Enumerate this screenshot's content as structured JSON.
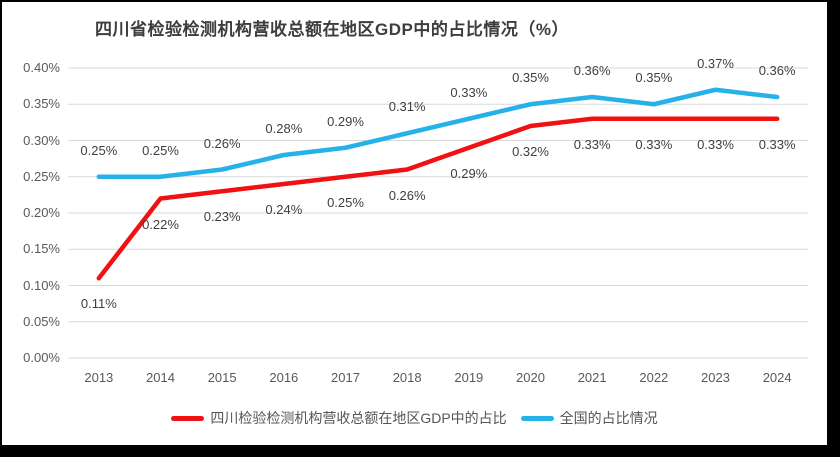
{
  "window": {
    "frame_color": "#000000",
    "surface_color": "#ffffff"
  },
  "chart_data": {
    "type": "line",
    "title": "四川省检验检测机构营收总额在地区GDP中的占比情况（%）",
    "xlabel": "",
    "ylabel": "",
    "categories": [
      "2013",
      "2014",
      "2015",
      "2016",
      "2017",
      "2018",
      "2019",
      "2020",
      "2021",
      "2022",
      "2023",
      "2024"
    ],
    "series": [
      {
        "name": "四川检验检测机构营收总额在地区GDP中的占比",
        "color": "#f01212",
        "values": [
          0.11,
          0.22,
          0.23,
          0.24,
          0.25,
          0.26,
          0.29,
          0.32,
          0.33,
          0.33,
          0.33,
          0.33
        ],
        "labels": [
          "0.11%",
          "0.22%",
          "0.23%",
          "0.24%",
          "0.25%",
          "0.26%",
          "0.29%",
          "0.32%",
          "0.33%",
          "0.33%",
          "0.33%",
          "0.33%"
        ],
        "label_position": "below"
      },
      {
        "name": "全国的占比情况",
        "color": "#27b1e9",
        "values": [
          0.25,
          0.25,
          0.26,
          0.28,
          0.29,
          0.31,
          0.33,
          0.35,
          0.36,
          0.35,
          0.37,
          0.36
        ],
        "labels": [
          "0.25%",
          "0.25%",
          "0.26%",
          "0.28%",
          "0.29%",
          "0.31%",
          "0.33%",
          "0.35%",
          "0.36%",
          "0.35%",
          "0.37%",
          "0.36%"
        ],
        "label_position": "above"
      }
    ],
    "y_axis": {
      "min": 0,
      "max": 0.4,
      "step": 0.05,
      "tick_labels": [
        "0.00%",
        "0.05%",
        "0.10%",
        "0.15%",
        "0.20%",
        "0.25%",
        "0.30%",
        "0.35%",
        "0.40%"
      ]
    },
    "grid": "horizontal",
    "gridline_color": "#d9d9d9",
    "legend_position": "bottom",
    "axis_text_color": "#595959",
    "data_label_color": "#3f3f3f"
  }
}
